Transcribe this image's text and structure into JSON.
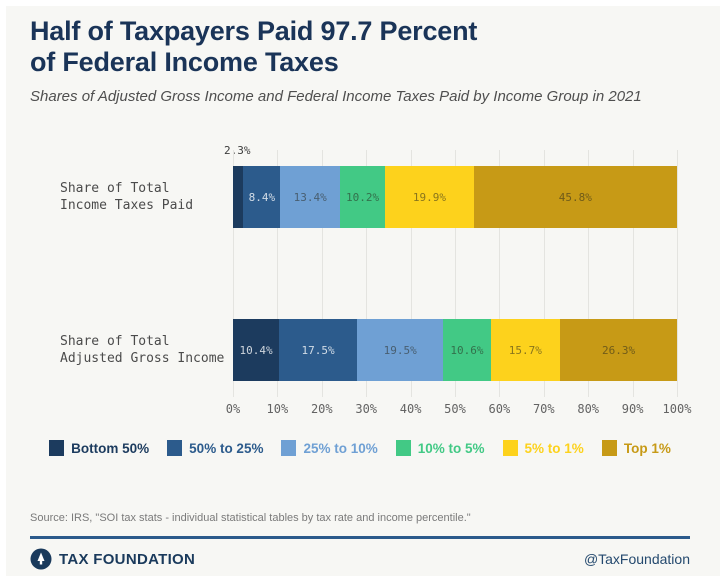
{
  "header": {
    "title_line1": "Half of Taxpayers Paid 97.7 Percent",
    "title_line2": "of Federal Income Taxes",
    "subtitle": "Shares of Adjusted Gross Income and Federal Income Taxes Paid by Income Group in 2021"
  },
  "chart_data": {
    "type": "bar",
    "orientation": "horizontal",
    "stacked": true,
    "categories": [
      "Share of Total\nIncome Taxes Paid",
      "Share of Total\nAdjusted Gross Income"
    ],
    "groups": [
      {
        "name": "Bottom 50%",
        "color": "#1c3b5e",
        "text_style": "light",
        "values": [
          2.3,
          10.4
        ]
      },
      {
        "name": "50% to 25%",
        "color": "#2c5b8c",
        "text_style": "light",
        "values": [
          8.4,
          17.5
        ]
      },
      {
        "name": "25% to 10%",
        "color": "#6fa0d4",
        "text_style": "dark",
        "values": [
          13.4,
          19.5
        ]
      },
      {
        "name": "10% to 5%",
        "color": "#42c985",
        "text_style": "dark",
        "values": [
          10.2,
          10.6
        ]
      },
      {
        "name": "5% to 1%",
        "color": "#fdd21c",
        "text_style": "dark",
        "values": [
          19.9,
          15.7
        ]
      },
      {
        "name": "Top 1%",
        "color": "#c79a16",
        "text_style": "dark",
        "values": [
          45.8,
          26.3
        ]
      }
    ],
    "x_ticks": [
      "0%",
      "10%",
      "20%",
      "30%",
      "40%",
      "50%",
      "60%",
      "70%",
      "80%",
      "90%",
      "100%"
    ],
    "xlim": [
      0,
      100
    ],
    "grid": true,
    "legend_position": "bottom",
    "outside_label": {
      "text": "2.3%",
      "row": 0,
      "group": "Bottom 50%"
    },
    "min_label_pct": 4
  },
  "footer": {
    "source": "Source: IRS, \"SOI tax stats - individual statistical tables by tax rate and income percentile.\"",
    "brand": "TAX FOUNDATION",
    "handle": "@TaxFoundation"
  },
  "colors": {
    "title_navy": "#1a3458",
    "divider_blue": "#2b5a8b",
    "background": "#f7f7f4"
  }
}
